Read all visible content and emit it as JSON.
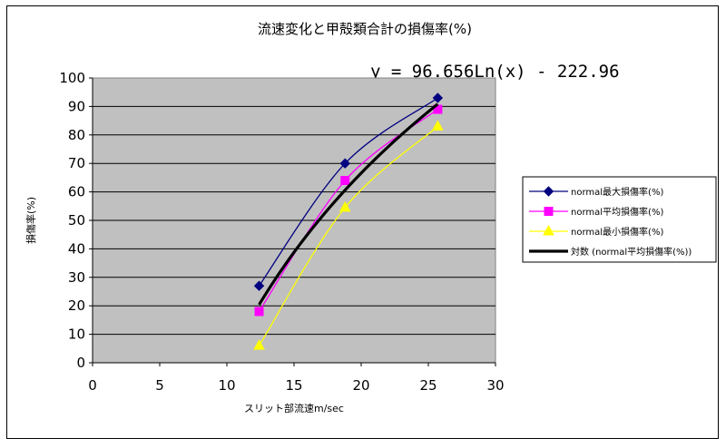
{
  "chart_data": {
    "type": "scatter",
    "title": "流速変化と甲殻類合計の損傷率(%)",
    "xlabel": "スリット部流速m/sec",
    "ylabel": "損傷率(%)",
    "xlim": [
      0,
      30
    ],
    "ylim": [
      0,
      100
    ],
    "xticks": [
      "0",
      "5",
      "10",
      "15",
      "20",
      "25",
      "30"
    ],
    "yticks": [
      "0",
      "10",
      "20",
      "30",
      "40",
      "50",
      "60",
      "70",
      "80",
      "90",
      "100"
    ],
    "grid": "horizontal",
    "legend_position": "right",
    "trendline_equation": "y = 96.656Ln(x) - 222.96",
    "series": [
      {
        "name": "normal最大損傷率(%)",
        "color": "#000080",
        "marker": "diamond",
        "x": [
          12.4,
          18.8,
          25.7
        ],
        "y": [
          27,
          70,
          93
        ]
      },
      {
        "name": "normal平均損傷率(%)",
        "color": "#ff00ff",
        "marker": "square",
        "x": [
          12.4,
          18.8,
          25.7
        ],
        "y": [
          18,
          64,
          89
        ]
      },
      {
        "name": "normal最小損傷率(%)",
        "color": "#ffff00",
        "marker": "triangle",
        "x": [
          12.4,
          18.8,
          25.7
        ],
        "y": [
          6,
          54.5,
          83
        ]
      }
    ],
    "trendline": {
      "name": "対数 (normal平均損傷率(%))",
      "color": "#000000",
      "type": "logarithmic",
      "a": 96.656,
      "b": -222.96
    }
  }
}
